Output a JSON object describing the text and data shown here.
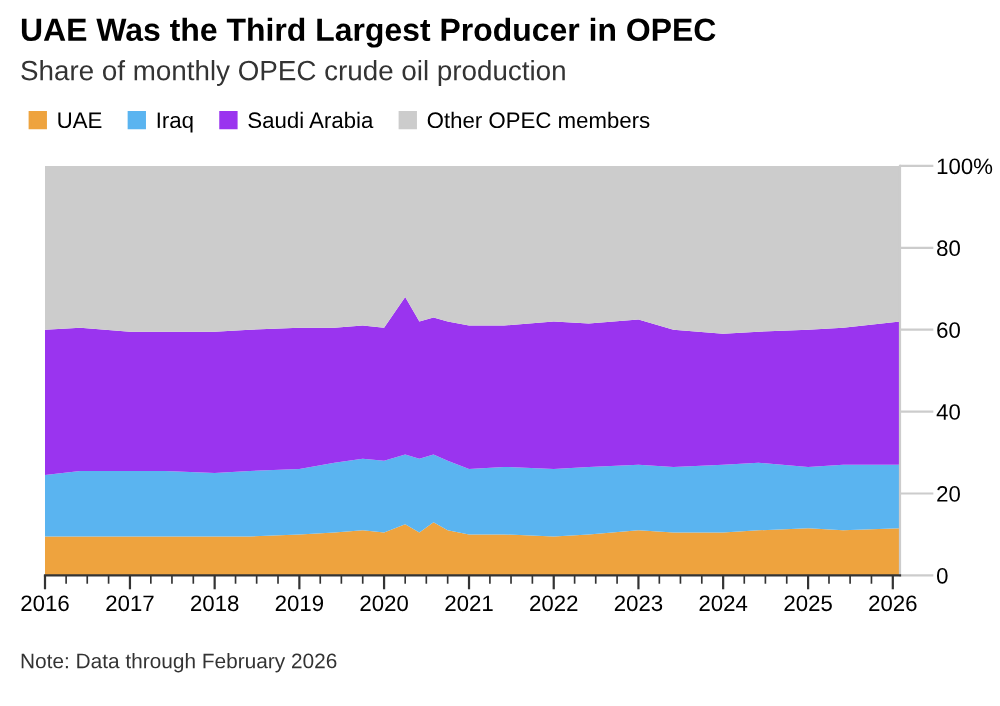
{
  "chart_data": {
    "type": "area",
    "stacked": true,
    "title": "UAE Was the Third Largest Producer in OPEC",
    "subtitle": "Share of monthly OPEC crude oil production",
    "x": [
      "2016-01",
      "2016-06",
      "2017-01",
      "2017-06",
      "2018-01",
      "2018-06",
      "2019-01",
      "2019-06",
      "2019-10",
      "2020-01",
      "2020-04",
      "2020-06",
      "2020-08",
      "2020-10",
      "2021-01",
      "2021-06",
      "2022-01",
      "2022-06",
      "2023-01",
      "2023-06",
      "2024-01",
      "2024-06",
      "2025-01",
      "2025-06",
      "2026-02"
    ],
    "series": [
      {
        "name": "UAE",
        "color": "#eea33e",
        "values": [
          9.5,
          9.5,
          9.5,
          9.5,
          9.5,
          9.5,
          10,
          10.5,
          11,
          10.5,
          12.5,
          10.5,
          13,
          11,
          10,
          10,
          9.5,
          10,
          11,
          10.5,
          10.5,
          11,
          11.5,
          11,
          11.5
        ]
      },
      {
        "name": "Iraq",
        "color": "#5ab4f0",
        "values": [
          15,
          16,
          16,
          16,
          15.5,
          16,
          16,
          17,
          17.5,
          17.5,
          17,
          18,
          16.5,
          17,
          16,
          16.5,
          16.5,
          16.5,
          16,
          16,
          16.5,
          16.5,
          15,
          16,
          15.5
        ]
      },
      {
        "name": "Saudi Arabia",
        "color": "#9a34ef",
        "values": [
          35.5,
          35,
          34,
          34,
          34.5,
          34.5,
          34.5,
          33,
          32.5,
          32.5,
          38.5,
          33.5,
          33.5,
          34,
          35,
          34.5,
          36,
          35,
          35.5,
          33.5,
          32,
          32,
          33.5,
          33.5,
          35
        ]
      },
      {
        "name": "Other OPEC members",
        "color": "#cccccc",
        "values": [
          40,
          39.5,
          40.5,
          40.5,
          40.5,
          40,
          39.5,
          39.5,
          39,
          39.5,
          32,
          38,
          37,
          38,
          39,
          39,
          38,
          38.5,
          37.5,
          40,
          41,
          40.5,
          40,
          39.5,
          38
        ]
      }
    ],
    "xlim": [
      "2016-01",
      "2026-02"
    ],
    "xticks": [
      "2016",
      "2017",
      "2018",
      "2019",
      "2020",
      "2021",
      "2022",
      "2023",
      "2024",
      "2025",
      "2026"
    ],
    "ylim": [
      0,
      100
    ],
    "yticks": [
      0,
      20,
      40,
      60,
      80,
      {
        "value": 100,
        "label": "100%"
      }
    ],
    "legend": "top left",
    "annotations": [
      "Note: Data through February 2026"
    ]
  }
}
